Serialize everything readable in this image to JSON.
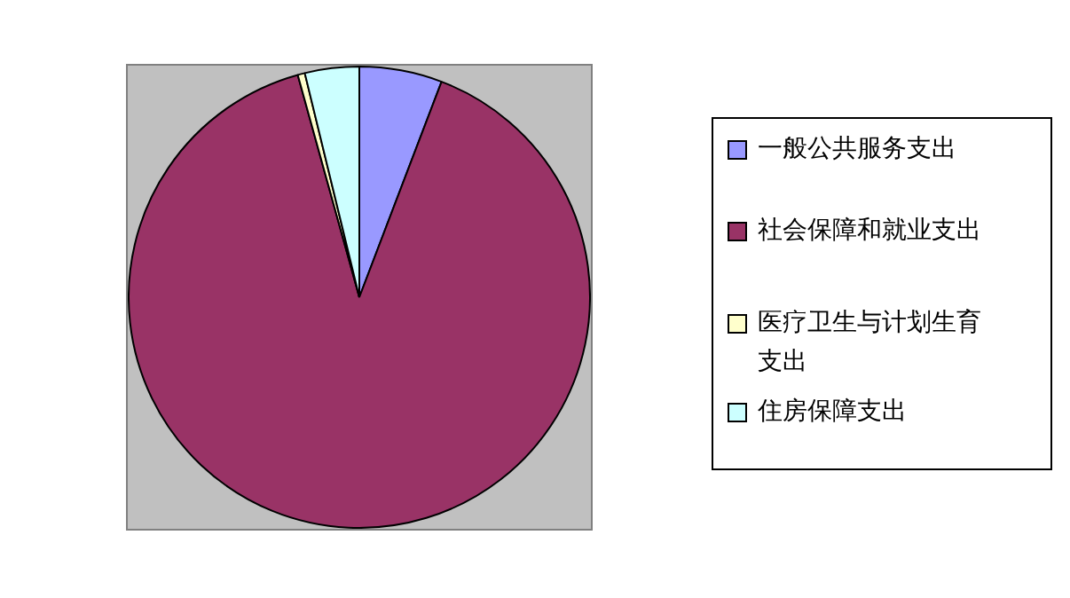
{
  "chart_data": {
    "type": "pie",
    "categories": [
      "一般公共服务支出",
      "社会保障和就业支出",
      "医疗卫生与计划生育支出",
      "住房保障支出"
    ],
    "values": [
      5.8,
      89.9,
      0.5,
      3.8
    ],
    "colors": [
      "#9999ff",
      "#993366",
      "#ffffcc",
      "#ccffff"
    ],
    "legend": "right"
  }
}
